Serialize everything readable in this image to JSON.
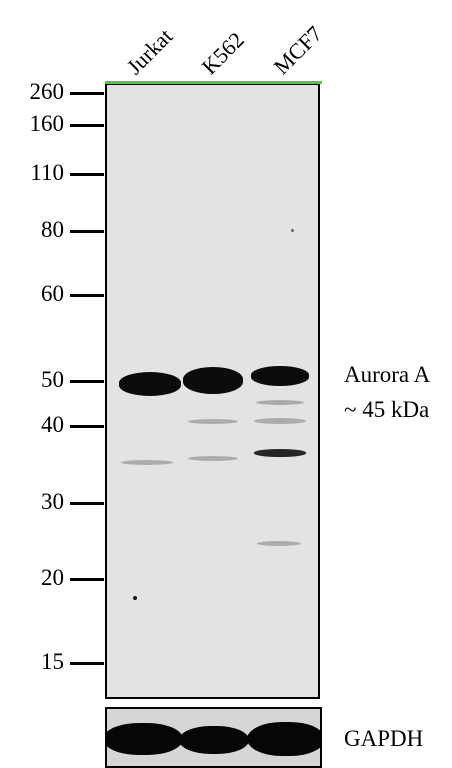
{
  "lanes": [
    "Jurkat",
    "K562",
    "MCF7"
  ],
  "markers": [
    "260",
    "160",
    "110",
    "80",
    "60",
    "50",
    "40",
    "30",
    "20",
    "15"
  ],
  "target": {
    "name": "Aurora A",
    "size": "~  45 kDa"
  },
  "loading_control": "GAPDH",
  "colors": {
    "blot_background": "#e3e3e3",
    "band": "#0c0c0c",
    "top_line": "#5fbf56"
  }
}
